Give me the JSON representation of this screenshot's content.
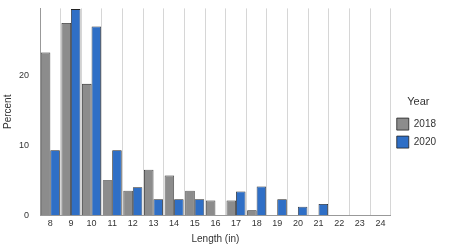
{
  "chart_data": {
    "type": "bar",
    "x_label": "Length (in)",
    "y_label": "Percent",
    "legend_title": "Year",
    "categories": [
      "8",
      "9",
      "10",
      "11",
      "12",
      "13",
      "14",
      "15",
      "16",
      "17",
      "18",
      "19",
      "20",
      "21",
      "22",
      "23",
      "24"
    ],
    "series": [
      {
        "name": "2018",
        "color": "#8c8c8c",
        "values": [
          23.3,
          27.5,
          18.8,
          5.0,
          3.5,
          6.5,
          5.7,
          3.5,
          2.1,
          2.1,
          0.7,
          0,
          0,
          0,
          0,
          0,
          0
        ]
      },
      {
        "name": "2020",
        "color": "#2f6fc6",
        "values": [
          9.3,
          29.5,
          27.0,
          9.3,
          4.0,
          2.3,
          2.3,
          2.3,
          0,
          3.4,
          4.1,
          2.3,
          1.2,
          1.6,
          0,
          0,
          0
        ]
      }
    ],
    "ylim": [
      0,
      29.6
    ],
    "yticks": [
      0,
      10,
      20
    ],
    "grid": true,
    "legend": "right"
  }
}
